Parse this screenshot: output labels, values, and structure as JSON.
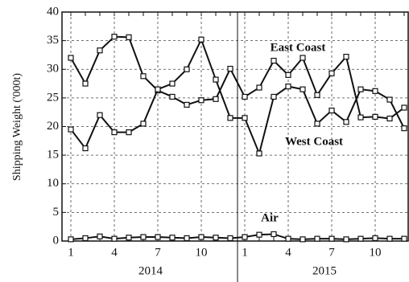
{
  "chart_data": {
    "type": "line",
    "y_label": "Shipping Weight ('000t)",
    "categories": [
      "1",
      null,
      null,
      "4",
      null,
      null,
      "7",
      null,
      null,
      "10",
      null,
      null,
      "1",
      null,
      null,
      "4",
      null,
      null,
      "7",
      null,
      null,
      "10",
      null,
      null
    ],
    "year_labels": [
      "2014",
      "2015"
    ],
    "series": [
      {
        "name": "East Coast",
        "color": "#111111",
        "values": [
          32,
          27.5,
          33.3,
          35.7,
          35.6,
          28.8,
          26.3,
          25.2,
          23.8,
          24.6,
          24.8,
          30.1,
          25.2,
          26.8,
          31.5,
          29,
          32,
          25.5,
          29.3,
          32.2,
          21.6,
          21.7,
          21.4,
          23.3
        ]
      },
      {
        "name": "West Coast",
        "color": "#111111",
        "values": [
          19.5,
          16.2,
          22,
          19,
          19,
          20.5,
          26.5,
          27.5,
          30,
          35.2,
          28.2,
          21.5,
          21.5,
          15.3,
          25.2,
          27,
          26.5,
          20.5,
          22.8,
          20.8,
          26.5,
          26.2,
          24.7,
          19.7
        ]
      },
      {
        "name": "Air",
        "color": "#111111",
        "values": [
          0.3,
          0.5,
          0.8,
          0.4,
          0.6,
          0.7,
          0.7,
          0.6,
          0.5,
          0.7,
          0.6,
          0.5,
          0.7,
          1.1,
          1.2,
          0.4,
          0.3,
          0.4,
          0.4,
          0.3,
          0.4,
          0.5,
          0.4,
          0.4
        ]
      }
    ],
    "ylim": [
      0,
      40
    ],
    "yticks": [
      0,
      5,
      10,
      15,
      20,
      25,
      30,
      35,
      40
    ],
    "grid": true
  }
}
